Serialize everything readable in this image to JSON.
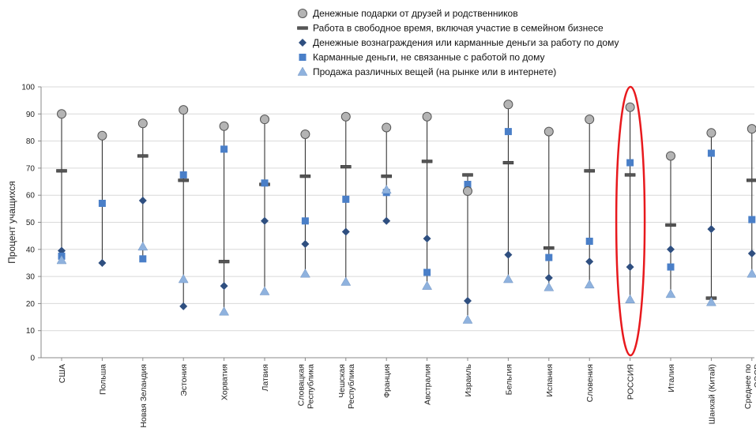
{
  "chart_data": {
    "type": "scatter",
    "ylabel": "Процент учащихся",
    "ylim": [
      0,
      100
    ],
    "yticks": [
      0,
      10,
      20,
      30,
      40,
      50,
      60,
      70,
      80,
      90,
      100
    ],
    "categories": [
      [
        "США"
      ],
      [
        "Польша"
      ],
      [
        "Новая Зеландия"
      ],
      [
        "Эстония"
      ],
      [
        "Хорватия"
      ],
      [
        "Латвия"
      ],
      [
        "Словацкая",
        "Республика"
      ],
      [
        "Чешская",
        "Республика"
      ],
      [
        "Франция"
      ],
      [
        "Австралия"
      ],
      [
        "Израиль"
      ],
      [
        "Бельгия"
      ],
      [
        "Испания"
      ],
      [
        "Словения"
      ],
      [
        "РОССИЯ"
      ],
      [
        "Италия"
      ],
      [
        "Шанхай (Китай)"
      ],
      [
        "Среднее по",
        "ОЭСР"
      ]
    ],
    "series": [
      {
        "name": "Денежные подарки от друзей и родственников",
        "marker": "circle",
        "color": "#b4b4b4",
        "values": [
          90,
          82,
          86.5,
          91.5,
          85.5,
          88,
          82.5,
          89,
          85,
          89,
          61.5,
          93.5,
          83.5,
          88,
          92.5,
          74.5,
          83,
          84.5
        ]
      },
      {
        "name": "Работа в свободное время, включая участие в семейном бизнесе",
        "marker": "dash",
        "color": "#555555",
        "values": [
          69,
          null,
          74.5,
          65.5,
          35.5,
          64,
          67,
          70.5,
          67,
          72.5,
          67.5,
          72,
          40.5,
          69,
          67.5,
          49,
          22,
          65.5
        ]
      },
      {
        "name": "Денежные вознаграждения или карманные деньги за работу по дому",
        "marker": "diamond",
        "color": "#2f4f80",
        "values": [
          39.5,
          35,
          58,
          19,
          26.5,
          50.5,
          42,
          46.5,
          50.5,
          44,
          21,
          38,
          29.5,
          35.5,
          33.5,
          40,
          47.5,
          38.5
        ]
      },
      {
        "name": "Карманные деньги, не связанные с работой по дому",
        "marker": "square",
        "color": "#4a7fc8",
        "values": [
          37.5,
          57,
          36.5,
          67.5,
          77,
          64.5,
          50.5,
          58.5,
          61,
          31.5,
          64,
          83.5,
          37,
          43,
          72,
          33.5,
          75.5,
          51
        ]
      },
      {
        "name": "Продажа различных вещей (на рынке или в интернете)",
        "marker": "triangle",
        "color": "#8fb2de",
        "values": [
          36,
          null,
          41,
          29,
          17,
          24.5,
          31,
          28,
          62,
          26.5,
          14,
          29,
          26,
          27,
          21.5,
          23.5,
          20.5,
          31
        ]
      }
    ],
    "highlight": {
      "category": "РОССИЯ",
      "shape": "ellipse",
      "color": "#e8191d"
    }
  }
}
